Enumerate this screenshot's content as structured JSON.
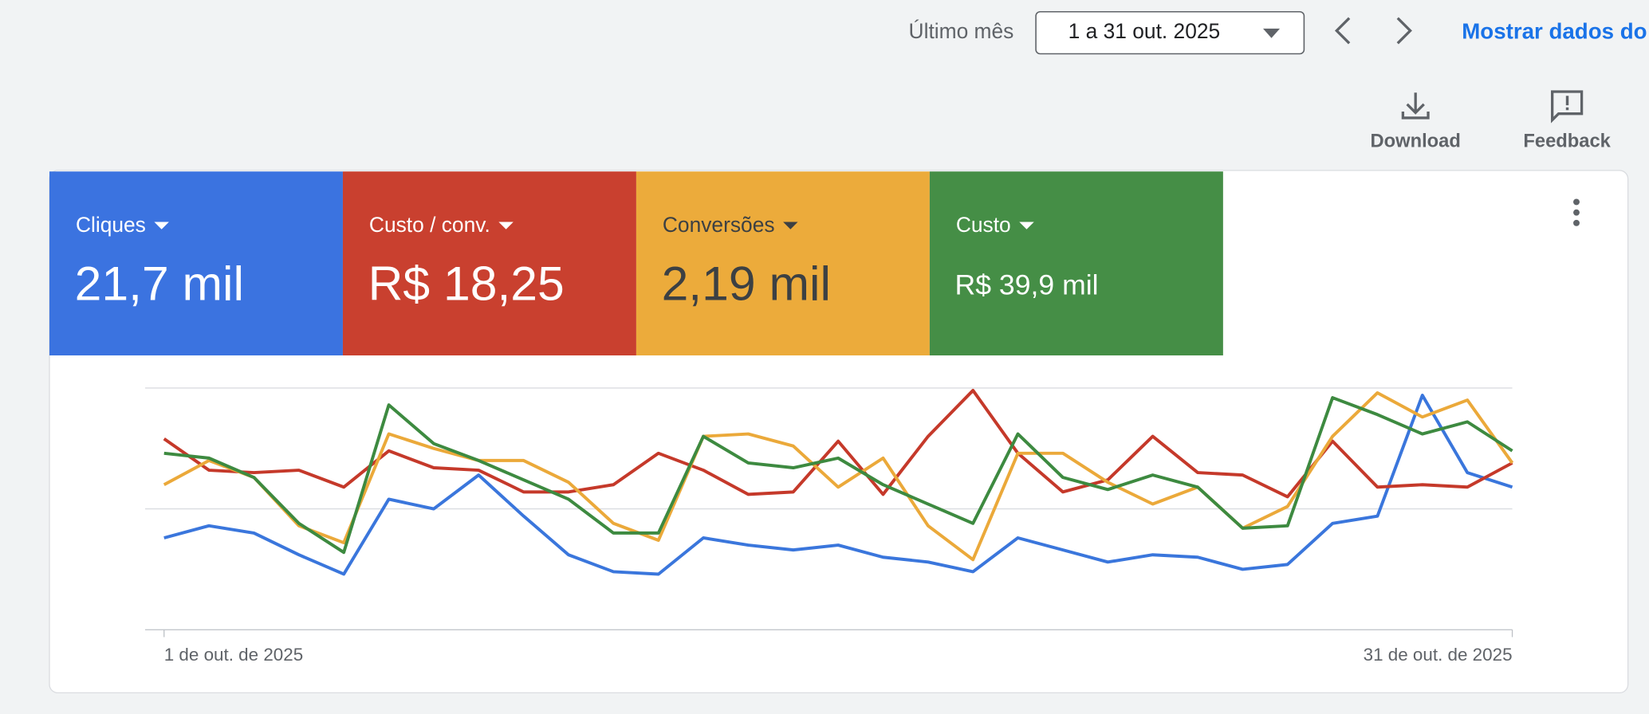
{
  "toolbar": {
    "period_label": "Último mês",
    "date_range": "1 a 31 out. 2025",
    "show_data": "Mostrar dados do"
  },
  "actions": [
    "Download",
    "Feedback"
  ],
  "chart_data": {
    "type": "line",
    "x": [
      "1 de out. de 2025",
      null,
      null,
      null,
      null,
      null,
      null,
      null,
      null,
      null,
      null,
      null,
      null,
      null,
      null,
      null,
      null,
      null,
      null,
      null,
      null,
      null,
      null,
      null,
      null,
      null,
      null,
      null,
      null,
      null,
      "31 de out. de 2025"
    ],
    "ylim": [
      0,
      100
    ],
    "yticks": [
      0,
      50,
      100
    ],
    "grid": true,
    "series": [
      {
        "name": "Cliques",
        "summary": "21,7 mil",
        "color": "#3b73e0",
        "line_color": "#3a76dc",
        "values": [
          38,
          43,
          40,
          31,
          23,
          54,
          50,
          64,
          47,
          31,
          24,
          23,
          38,
          35,
          33,
          35,
          30,
          28,
          24,
          38,
          33,
          28,
          31,
          30,
          25,
          27,
          44,
          47,
          97,
          65,
          59
        ]
      },
      {
        "name": "Custo / conv.",
        "summary": "R$ 18,25",
        "color": "#c9402f",
        "line_color": "#c5392a",
        "values": [
          79,
          66,
          65,
          66,
          59,
          74,
          67,
          66,
          57,
          57,
          60,
          73,
          66,
          56,
          57,
          78,
          56,
          80,
          99,
          73,
          57,
          62,
          80,
          65,
          64,
          55,
          78,
          59,
          60,
          59,
          69
        ]
      },
      {
        "name": "Conversões",
        "summary": "2,19 mil",
        "color": "#ecab3b",
        "line_color": "#eba93a",
        "values": [
          60,
          70,
          63,
          43,
          36,
          81,
          75,
          70,
          70,
          61,
          44,
          37,
          80,
          81,
          76,
          59,
          71,
          43,
          29,
          73,
          73,
          61,
          52,
          59,
          42,
          51,
          80,
          98,
          88,
          95,
          69
        ]
      },
      {
        "name": "Custo",
        "summary": "R$ 39,9 mil",
        "color": "#458e46",
        "line_color": "#3d8a40",
        "values": [
          73,
          71,
          63,
          44,
          32,
          93,
          77,
          70,
          62,
          54,
          40,
          40,
          80,
          69,
          67,
          71,
          60,
          52,
          44,
          81,
          63,
          58,
          64,
          59,
          42,
          43,
          96,
          89,
          81,
          86,
          74
        ]
      }
    ]
  }
}
